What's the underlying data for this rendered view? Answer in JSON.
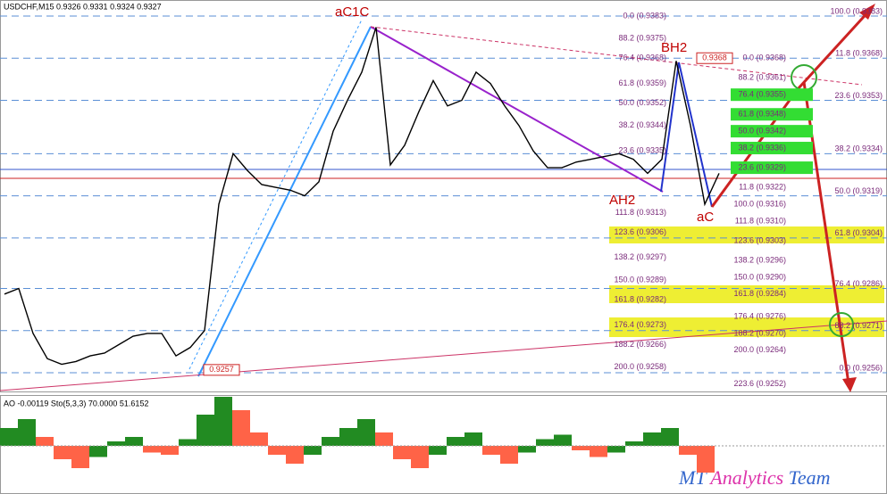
{
  "header": "USDCHF,M15  0.9326 0.9331 0.9324 0.9327",
  "price_chart": {
    "type": "line",
    "ylim": [
      0.9256,
      0.9383
    ],
    "color": "#000000",
    "close": [
      0.9284,
      0.9286,
      0.927,
      0.9261,
      0.9259,
      0.926,
      0.9262,
      0.9263,
      0.9266,
      0.9269,
      0.927,
      0.927,
      0.9262,
      0.9265,
      0.9271,
      0.9316,
      0.9334,
      0.9328,
      0.9323,
      0.9322,
      0.9321,
      0.9319,
      0.9324,
      0.9342,
      0.9353,
      0.9363,
      0.9379,
      0.933,
      0.9337,
      0.9349,
      0.936,
      0.9351,
      0.9353,
      0.9363,
      0.9359,
      0.9351,
      0.9344,
      0.9335,
      0.9329,
      0.9329,
      0.9331,
      0.9332,
      0.9333,
      0.9334,
      0.9332,
      0.9327,
      0.9332,
      0.9367,
      0.9344,
      0.9316,
      0.9327
    ]
  },
  "fib_left": [
    {
      "value": 0.9383,
      "label": "0.0 (0.9383)"
    },
    {
      "value": 0.9375,
      "label": "88.2 (0.9375)"
    },
    {
      "value": 0.9368,
      "label": "76.4 (0.9368)"
    },
    {
      "value": 0.9359,
      "label": "61.8 (0.9359)"
    },
    {
      "value": 0.9352,
      "label": "50.0 (0.9352)"
    },
    {
      "value": 0.9344,
      "label": "38.2 (0.9344)"
    },
    {
      "value": 0.9335,
      "label": "23.6 (0.9335)"
    },
    {
      "value": 0.9313,
      "label": "111.8 (0.9313)"
    },
    {
      "value": 0.9306,
      "label": "123.6 (0.9306)"
    },
    {
      "value": 0.9297,
      "label": "138.2 (0.9297)"
    },
    {
      "value": 0.9289,
      "label": "150.0 (0.9289)"
    },
    {
      "value": 0.9282,
      "label": "161.8 (0.9282)"
    },
    {
      "value": 0.9273,
      "label": "176.4 (0.9273)"
    },
    {
      "value": 0.9266,
      "label": "188.2 (0.9266)"
    },
    {
      "value": 0.9258,
      "label": "200.0 (0.9258)"
    }
  ],
  "fib_mid": [
    {
      "value": 0.9368,
      "label": "0.0 (0.9368)"
    },
    {
      "value": 0.9361,
      "label": "88.2 (0.9361)"
    },
    {
      "value": 0.9355,
      "label": "76.4 (0.9355)",
      "highlight": "#33dd33"
    },
    {
      "value": 0.9348,
      "label": "61.8 (0.9348)",
      "highlight": "#33dd33"
    },
    {
      "value": 0.9342,
      "label": "50.0 (0.9342)",
      "highlight": "#33dd33"
    },
    {
      "value": 0.9336,
      "label": "38.2 (0.9336)",
      "highlight": "#33dd33"
    },
    {
      "value": 0.9329,
      "label": "23.6 (0.9329)",
      "highlight": "#33dd33"
    },
    {
      "value": 0.9322,
      "label": "11.8 (0.9322)"
    },
    {
      "value": 0.9316,
      "label": "100.0 (0.9316)"
    },
    {
      "value": 0.931,
      "label": "111.8 (0.9310)"
    },
    {
      "value": 0.9303,
      "label": "123.6 (0.9303)"
    },
    {
      "value": 0.9296,
      "label": "138.2 (0.9296)"
    },
    {
      "value": 0.929,
      "label": "150.0 (0.9290)"
    },
    {
      "value": 0.9284,
      "label": "161.8 (0.9284)"
    },
    {
      "value": 0.9276,
      "label": "176.4 (0.9276)"
    },
    {
      "value": 0.927,
      "label": "188.2 (0.9270)"
    },
    {
      "value": 0.9264,
      "label": "200.0 (0.9264)"
    },
    {
      "value": 0.9252,
      "label": "223.6 (0.9252)"
    }
  ],
  "fib_right": [
    {
      "value": 0.9383,
      "label": "100.0 (0.9383)"
    },
    {
      "value": 0.9368,
      "label": "11.8 (0.9368)"
    },
    {
      "value": 0.9353,
      "label": "23.6 (0.9353)"
    },
    {
      "value": 0.9334,
      "label": "38.2 (0.9334)"
    },
    {
      "value": 0.9319,
      "label": "50.0 (0.9319)"
    },
    {
      "value": 0.9304,
      "label": "61.8 (0.9304)"
    },
    {
      "value": 0.9286,
      "label": "76.4 (0.9286)"
    },
    {
      "value": 0.9271,
      "label": "88.2 (0.9271)"
    },
    {
      "value": 0.9256,
      "label": "0.0 (0.9256)"
    }
  ],
  "price_tags": [
    0.9368,
    0.9257
  ],
  "wave_labels": [
    "aC1C",
    "BH2",
    "AH2",
    "aC"
  ],
  "oscillator": {
    "header": "AO -0.00119 Sto(5,3,3) 70.0000 51.6152",
    "ylim": [
      -0.002,
      0.002
    ],
    "ao": [
      0.0008,
      0.0012,
      0.0004,
      -0.0006,
      -0.001,
      -0.0005,
      0.0002,
      0.0004,
      -0.0003,
      -0.0004,
      0.0003,
      0.0014,
      0.0022,
      0.0016,
      0.0006,
      -0.0004,
      -0.0008,
      -0.0004,
      0.0004,
      0.0008,
      0.0012,
      0.0006,
      -0.0006,
      -0.001,
      -0.0004,
      0.0004,
      0.0006,
      -0.0004,
      -0.0008,
      -0.0003,
      0.0003,
      0.0005,
      -0.0002,
      -0.0005,
      -0.0003,
      0.0002,
      0.0006,
      0.0008,
      -0.0004,
      -0.0012
    ]
  },
  "watermark": [
    "MT",
    "Analytics",
    "Team"
  ]
}
